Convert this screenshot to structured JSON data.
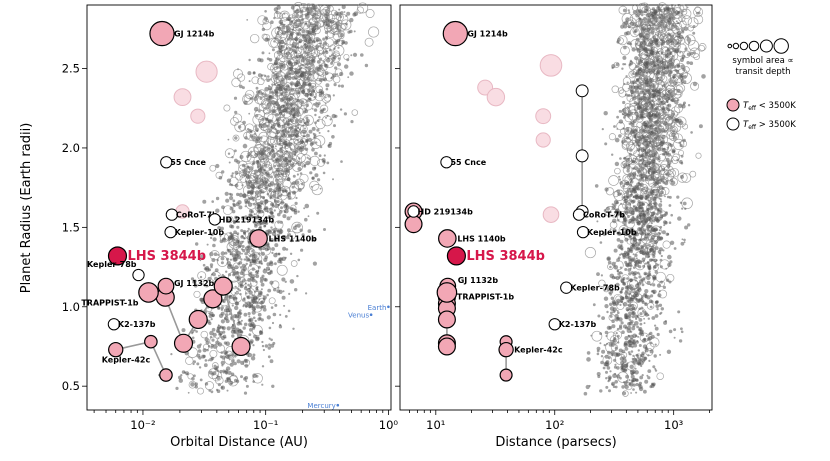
{
  "chart_data": [
    {
      "type": "scatter",
      "panel": "left",
      "xscale": "log",
      "xlabel": "Orbital Distance (AU)",
      "ylabel": "Planet Radius (Earth radii)",
      "xlim": [
        0.0035,
        1.05
      ],
      "ylim": [
        0.35,
        2.9
      ],
      "xticks": [
        0.01,
        0.1,
        1
      ],
      "xtick_labels": [
        "10⁻²",
        "10⁻¹",
        "10⁰"
      ],
      "yticks": [
        0.5,
        1.0,
        1.5,
        2.0,
        2.5
      ],
      "ytick_labels": [
        "0.5",
        "1.0",
        "1.5",
        "2.0",
        "2.5"
      ],
      "labeled_planets": [
        {
          "name": "GJ 1214b",
          "x": 0.0143,
          "y": 2.72,
          "area": 2.6,
          "cool": true
        },
        {
          "name": "55 Cnce",
          "x": 0.0155,
          "y": 1.91,
          "area": 0.2,
          "cool": false
        },
        {
          "name": "CoRoT-7b",
          "x": 0.0172,
          "y": 1.58,
          "area": 0.2,
          "cool": false
        },
        {
          "name": "HD 219134b",
          "x": 0.0385,
          "y": 1.55,
          "area": 0.2,
          "cool": false
        },
        {
          "name": "Kepler-10b",
          "x": 0.0168,
          "y": 1.47,
          "area": 0.2,
          "cool": false
        },
        {
          "name": "LHS 1140b",
          "x": 0.0875,
          "y": 1.43,
          "area": 1.0,
          "cool": true
        },
        {
          "name": "LHS 3844b",
          "x": 0.0062,
          "y": 1.32,
          "area": 1.1,
          "cool": true,
          "highlight": true
        },
        {
          "name": "Kepler-78b",
          "x": 0.0092,
          "y": 1.2,
          "area": 0.2,
          "cool": false
        },
        {
          "name": "GJ 1132b",
          "x": 0.0154,
          "y": 1.13,
          "area": 0.7,
          "cool": true
        },
        {
          "name": "TRAPPIST-1b",
          "x": 0.0111,
          "y": 1.09,
          "area": 1.4,
          "cool": true
        },
        {
          "name": "K2-137b",
          "x": 0.0058,
          "y": 0.89,
          "area": 0.2,
          "cool": false
        },
        {
          "name": "Kepler-42c",
          "x": 0.006,
          "y": 0.73,
          "area": 0.5,
          "cool": true
        }
      ],
      "trappist_system": [
        {
          "x": 0.0111,
          "y": 1.09
        },
        {
          "x": 0.0152,
          "y": 1.06
        },
        {
          "x": 0.0214,
          "y": 0.77
        },
        {
          "x": 0.0282,
          "y": 0.92
        },
        {
          "x": 0.0371,
          "y": 1.05
        },
        {
          "x": 0.0451,
          "y": 1.13
        },
        {
          "x": 0.063,
          "y": 0.75
        }
      ],
      "kepler42_system": [
        {
          "x": 0.006,
          "y": 0.73
        },
        {
          "x": 0.0116,
          "y": 0.78
        },
        {
          "x": 0.0154,
          "y": 0.57
        }
      ],
      "solar_system": [
        {
          "name": "Mercury",
          "x": 0.387,
          "y": 0.38
        },
        {
          "name": "Venus",
          "x": 0.723,
          "y": 0.95
        },
        {
          "name": "Earth",
          "x": 1.0,
          "y": 1.0
        }
      ],
      "extra_cool": [
        {
          "x": 0.021,
          "y": 2.32,
          "area": 0.9
        },
        {
          "x": 0.033,
          "y": 2.48,
          "area": 1.8
        },
        {
          "x": 0.028,
          "y": 2.2,
          "area": 0.5
        },
        {
          "x": 0.021,
          "y": 1.6,
          "area": 0.4
        }
      ]
    },
    {
      "type": "scatter",
      "panel": "right",
      "xscale": "log",
      "xlabel": "Distance (parsecs)",
      "xlim": [
        5.0,
        2100
      ],
      "ylim": [
        0.35,
        2.9
      ],
      "xticks": [
        10,
        100,
        1000
      ],
      "xtick_labels": [
        "10¹",
        "10²",
        "10³"
      ],
      "yticks": [
        0.5,
        1.0,
        1.5,
        2.0,
        2.5
      ],
      "labeled_planets": [
        {
          "name": "GJ 1214b",
          "x": 14.6,
          "y": 2.72,
          "area": 2.6,
          "cool": true
        },
        {
          "name": "55 Cnce",
          "x": 12.3,
          "y": 1.91,
          "area": 0.2,
          "cool": false
        },
        {
          "name": "HD 219134b",
          "x": 6.5,
          "y": 1.6,
          "area": 0.2,
          "cool": false
        },
        {
          "name": "CoRoT-7b",
          "x": 160,
          "y": 1.58,
          "area": 0.2,
          "cool": false
        },
        {
          "name": "Kepler-10b",
          "x": 173,
          "y": 1.47,
          "area": 0.2,
          "cool": false
        },
        {
          "name": "LHS 1140b",
          "x": 12.5,
          "y": 1.43,
          "area": 1.0,
          "cool": true
        },
        {
          "name": "LHS 3844b",
          "x": 14.9,
          "y": 1.32,
          "area": 1.1,
          "cool": true,
          "highlight": true
        },
        {
          "name": "GJ 1132b",
          "x": 12.6,
          "y": 1.13,
          "area": 0.7,
          "cool": true
        },
        {
          "name": "TRAPPIST-1b",
          "x": 12.4,
          "y": 1.09,
          "area": 1.4,
          "cool": true
        },
        {
          "name": "Kepler-78b",
          "x": 125,
          "y": 1.12,
          "area": 0.2,
          "cool": false
        },
        {
          "name": "K2-137b",
          "x": 100,
          "y": 0.89,
          "area": 0.2,
          "cool": false
        },
        {
          "name": "Kepler-42c",
          "x": 39,
          "y": 0.73,
          "area": 0.5,
          "cool": true
        }
      ],
      "extra_cool": [
        {
          "x": 26,
          "y": 2.38,
          "area": 0.6
        },
        {
          "x": 32,
          "y": 2.32,
          "area": 1.0
        },
        {
          "x": 93,
          "y": 2.52,
          "area": 1.9
        },
        {
          "x": 80,
          "y": 2.2,
          "area": 0.6
        },
        {
          "x": 93,
          "y": 1.58,
          "area": 0.7
        },
        {
          "x": 80,
          "y": 2.05,
          "area": 0.5
        }
      ],
      "vertical_series": [
        {
          "x": 12.4,
          "y": [
            1.09,
            1.06,
            1.02,
            0.99,
            0.92,
            0.77,
            0.75
          ]
        },
        {
          "x": 39,
          "y": [
            0.78,
            0.73,
            0.57
          ]
        },
        {
          "x": 170,
          "y": [
            2.36,
            1.95,
            1.6
          ]
        },
        {
          "x": 6.5,
          "y": [
            1.6,
            1.52
          ]
        }
      ]
    }
  ],
  "legend": {
    "size_caption_line1": "symbol area ∝",
    "size_caption_line2": "transit depth",
    "cool_label_suffix": " < 3500K",
    "hot_label_suffix": " > 3500K",
    "teff_symbol": "T",
    "teff_subscript": "eff"
  },
  "colors": {
    "cool_fill": "#f2a7b5",
    "cool_fill_faint": "#f9dde3",
    "highlight_fill": "#d6174a",
    "highlight_text": "#d6174a",
    "background_point": "#555555",
    "solar_system": "#4a7fd4"
  }
}
